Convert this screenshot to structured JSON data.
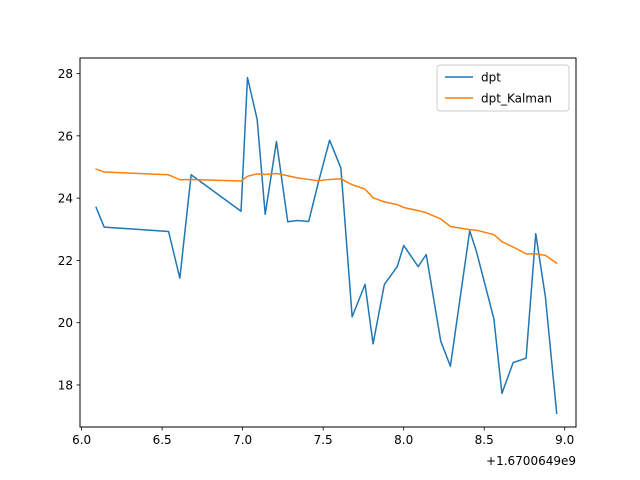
{
  "chart_data": {
    "type": "line",
    "title": "",
    "xlabel": "",
    "ylabel": "",
    "x_offset_label": "+1.6700649e9",
    "xlim": [
      5.99,
      9.07
    ],
    "ylim": [
      16.65,
      28.5
    ],
    "x_ticks": [
      6.0,
      6.5,
      7.0,
      7.5,
      8.0,
      8.5,
      9.0
    ],
    "x_tick_labels": [
      "6.0",
      "6.5",
      "7.0",
      "7.5",
      "8.0",
      "8.5",
      "9.0"
    ],
    "y_ticks": [
      18,
      20,
      22,
      24,
      26,
      28
    ],
    "y_tick_labels": [
      "18",
      "20",
      "22",
      "24",
      "26",
      "28"
    ],
    "grid": false,
    "legend_position": "upper right",
    "series": [
      {
        "name": "dpt",
        "color": "#1f77b4",
        "x": [
          6.09,
          6.14,
          6.54,
          6.61,
          6.68,
          6.99,
          7.03,
          7.09,
          7.14,
          7.21,
          7.28,
          7.34,
          7.41,
          7.47,
          7.54,
          7.61,
          7.68,
          7.76,
          7.81,
          7.88,
          7.96,
          8.0,
          8.09,
          8.14,
          8.23,
          8.29,
          8.41,
          8.45,
          8.56,
          8.61,
          8.68,
          8.76,
          8.82,
          8.88,
          8.95
        ],
        "y": [
          23.7,
          23.07,
          22.93,
          21.43,
          24.75,
          23.58,
          27.87,
          26.53,
          23.48,
          25.82,
          23.24,
          23.28,
          23.25,
          24.5,
          25.86,
          24.97,
          20.19,
          21.23,
          19.32,
          21.23,
          21.8,
          22.48,
          21.8,
          22.19,
          19.41,
          18.6,
          22.95,
          22.32,
          20.13,
          17.73,
          18.72,
          18.86,
          22.86,
          20.83,
          17.09
        ]
      },
      {
        "name": "dpt_Kalman",
        "color": "#ff7f0e",
        "x": [
          6.09,
          6.14,
          6.54,
          6.61,
          6.68,
          6.99,
          7.03,
          7.09,
          7.14,
          7.21,
          7.28,
          7.34,
          7.41,
          7.47,
          7.54,
          7.61,
          7.68,
          7.76,
          7.81,
          7.88,
          7.96,
          8.0,
          8.09,
          8.14,
          8.23,
          8.29,
          8.41,
          8.45,
          8.56,
          8.61,
          8.68,
          8.76,
          8.82,
          8.88,
          8.95
        ],
        "y": [
          24.93,
          24.84,
          24.75,
          24.59,
          24.6,
          24.55,
          24.7,
          24.78,
          24.76,
          24.79,
          24.72,
          24.65,
          24.6,
          24.56,
          24.6,
          24.62,
          24.43,
          24.29,
          24.01,
          23.88,
          23.79,
          23.7,
          23.6,
          23.53,
          23.33,
          23.09,
          22.99,
          22.97,
          22.83,
          22.6,
          22.43,
          22.21,
          22.21,
          22.16,
          21.91
        ]
      }
    ]
  }
}
